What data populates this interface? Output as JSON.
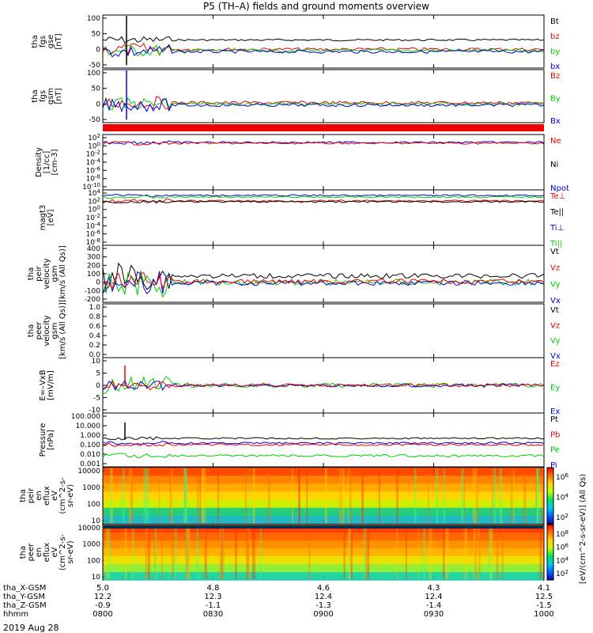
{
  "title": "P5 (TH–A) fields and ground moments overview",
  "footer": {
    "ephem_labels": [
      "tha_X-GSM",
      "tha_Y-GSM",
      "tha_Z-GSM",
      "hhmm"
    ],
    "ephem_rows": [
      [
        "5.0",
        "4.8",
        "4.6",
        "4.3",
        "4.1"
      ],
      [
        "12.2",
        "12.3",
        "12.4",
        "12.4",
        "12.5"
      ],
      [
        "-0.9",
        "-1.1",
        "-1.3",
        "-1.4",
        "-1.5"
      ],
      [
        "0800",
        "0830",
        "0900",
        "0930",
        "1000"
      ]
    ],
    "date": "2019 Aug 28"
  },
  "colorbar_unit": "[eV/(cm^2-s-sr-eV)] (All Qs)",
  "colorbar_ticks": [
    "10^8",
    "10^6",
    "10^4",
    "10^2"
  ],
  "colors": {
    "black": "#000000",
    "red": "#ee0000",
    "green": "#00cc00",
    "blue": "#0000dd"
  },
  "chart_data": [
    {
      "type": "line",
      "name": "fgs gse",
      "ylabel": [
        "tha",
        "fgs",
        "gse",
        "[nT]"
      ],
      "ylim": [
        -80,
        110
      ],
      "yticks": [
        "100",
        "50",
        "0",
        "-50"
      ],
      "series": [
        {
          "name": "Bt",
          "color": "black",
          "level": 30
        },
        {
          "name": "bz",
          "color": "red",
          "level": 0
        },
        {
          "name": "by",
          "color": "green",
          "level": -5
        },
        {
          "name": "bx",
          "color": "blue",
          "level": -3
        }
      ]
    },
    {
      "type": "line",
      "name": "fgs gsm",
      "ylabel": [
        "tha",
        "fgs",
        "gsm",
        "[nT]"
      ],
      "ylim": [
        -80,
        110
      ],
      "yticks": [
        "100",
        "50",
        "0",
        "-50"
      ],
      "series": [
        {
          "name": "Bz",
          "color": "red",
          "level": -5
        },
        {
          "name": "By",
          "color": "green",
          "level": 0
        },
        {
          "name": "Bx",
          "color": "blue",
          "level": 3
        }
      ]
    },
    {
      "type": "line",
      "name": "Density",
      "ylabel": [
        "Density",
        "[1/cc]",
        "[cm-3]"
      ],
      "yticks": [
        "10^2",
        "10^0",
        "10^-2",
        "10^-4",
        "10^-6",
        "10^-8",
        "10^-10"
      ],
      "series": [
        {
          "name": "Ne",
          "color": "red"
        },
        {
          "name": "Ni",
          "color": "black"
        },
        {
          "name": "Npot",
          "color": "blue"
        }
      ]
    },
    {
      "type": "line",
      "name": "magt3",
      "ylabel": [
        "magt3",
        "[eV]"
      ],
      "yticks": [
        "10^4",
        "10^2",
        "10^0",
        "10^-2",
        "10^-4",
        "10^-6",
        "10^-8"
      ],
      "series": [
        {
          "name": "Te⊥",
          "color": "red"
        },
        {
          "name": "Te||",
          "color": "black"
        },
        {
          "name": "Ti⊥",
          "color": "blue"
        },
        {
          "name": "Ti||",
          "color": "green"
        }
      ]
    },
    {
      "type": "line",
      "name": "peir velocity",
      "ylabel": [
        "tha",
        "peir",
        "velocity",
        "gsm",
        "[km/s (All Qs)]"
      ],
      "ylim": [
        -200,
        400
      ],
      "yticks": [
        "400",
        "300",
        "200",
        "100",
        "0",
        "-100",
        "-200"
      ],
      "series": [
        {
          "name": "Vt",
          "color": "black"
        },
        {
          "name": "Vz",
          "color": "red"
        },
        {
          "name": "Vy",
          "color": "green"
        },
        {
          "name": "Vx",
          "color": "blue"
        }
      ]
    },
    {
      "type": "line",
      "name": "peer velocity",
      "ylabel": [
        "tha",
        "peer",
        "velocity",
        "gsm",
        "[km/s (All Qs)]"
      ],
      "ylim": [
        0,
        1
      ],
      "yticks": [
        "1.0",
        "0.8",
        "0.6",
        "0.4",
        "0.2",
        "0.0"
      ],
      "series": [
        {
          "name": "Vt",
          "color": "black"
        },
        {
          "name": "Vz",
          "color": "red"
        },
        {
          "name": "Vy",
          "color": "green"
        },
        {
          "name": "Vx",
          "color": "blue"
        }
      ]
    },
    {
      "type": "line",
      "name": "E=-VxB",
      "ylabel": [
        "E=–VxB",
        "[mV/m]"
      ],
      "ylim": [
        -10,
        10
      ],
      "yticks": [
        "10",
        "5",
        "0",
        "-5",
        "-10"
      ],
      "series": [
        {
          "name": "Ez",
          "color": "red"
        },
        {
          "name": "Ey",
          "color": "green"
        },
        {
          "name": "Ex",
          "color": "blue"
        }
      ]
    },
    {
      "type": "line",
      "name": "Pressure",
      "ylabel": [
        "Pressure",
        "[nPa]"
      ],
      "yticks": [
        "100.000",
        "10.000",
        "1.000",
        "0.100",
        "0.010",
        "0.001"
      ],
      "series": [
        {
          "name": "Pt",
          "color": "black"
        },
        {
          "name": "Pb",
          "color": "red"
        },
        {
          "name": "Pe",
          "color": "green"
        },
        {
          "name": "Pi",
          "color": "blue"
        }
      ]
    },
    {
      "type": "heatmap",
      "name": "peir eflux",
      "ylabel": [
        "tha",
        "peir",
        "en",
        "eflux",
        "eV",
        "(cm^2-s-",
        "sr-eV)"
      ],
      "yticks": [
        "10000",
        "1000",
        "100",
        "10"
      ]
    },
    {
      "type": "heatmap",
      "name": "peer eflux",
      "ylabel": [
        "tha",
        "peer",
        "en",
        "eflux",
        "eV",
        "(cm^2-s-",
        "sr-eV)"
      ],
      "yticks": [
        "10000",
        "1000",
        "100",
        "10"
      ]
    }
  ]
}
